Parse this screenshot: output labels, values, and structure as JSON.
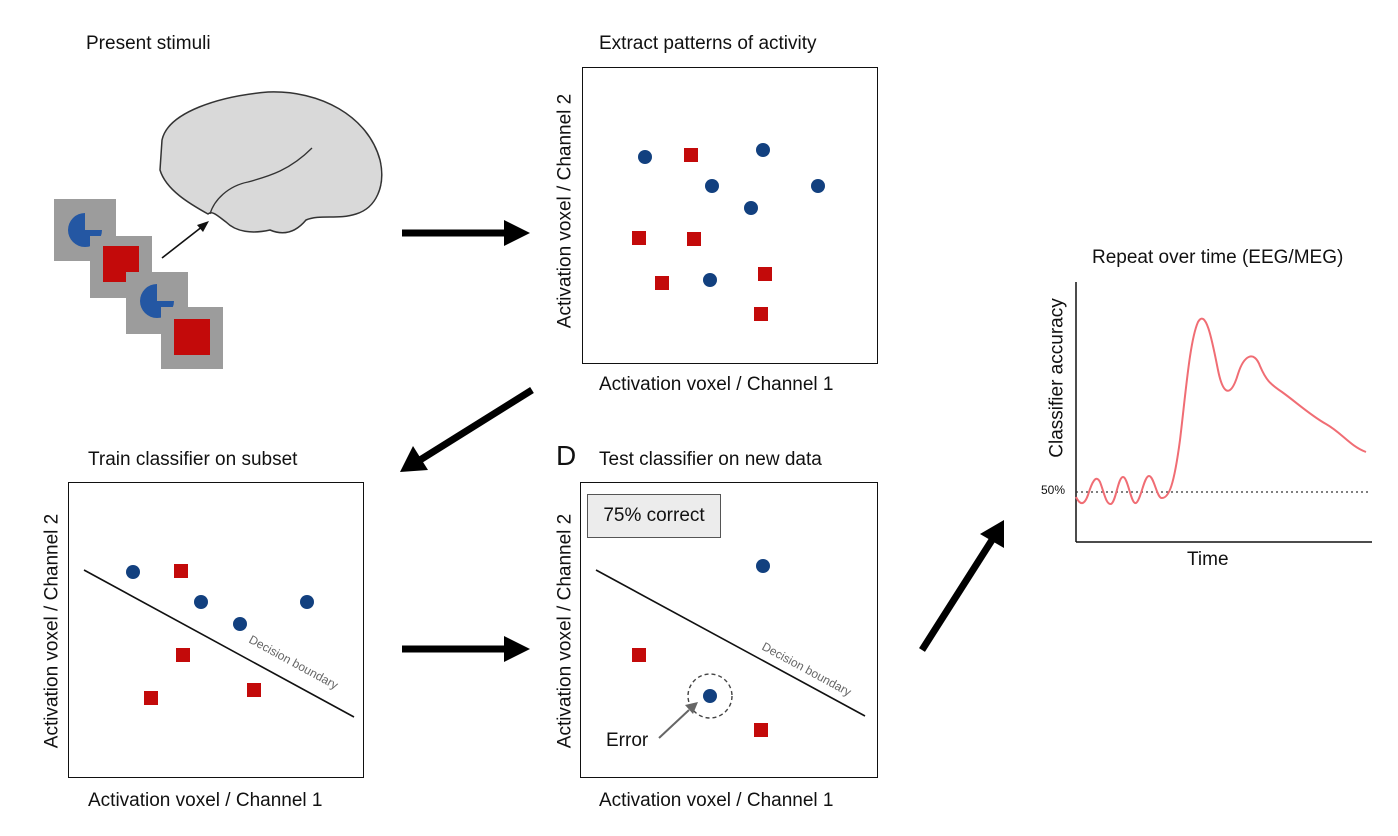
{
  "titles": {
    "present": "Present stimuli",
    "extract": "Extract patterns of activity",
    "train": "Train classifier on subset",
    "test_letter": "D",
    "test": "Test classifier on new data",
    "repeat": "Repeat over time (EEG/MEG)"
  },
  "axes": {
    "x": "Activation voxel / Channel 1",
    "y": "Activation voxel / Channel 2"
  },
  "labels": {
    "decision_boundary": "Decision boundary",
    "error": "Error",
    "correct": "75% correct"
  },
  "timecourse": {
    "ylabel": "Classifier accuracy",
    "xlabel": "Time",
    "chance": "50%"
  },
  "colors": {
    "circle": "#12407f",
    "square": "#c30a0a",
    "line": "#f06d74",
    "brain": "#d9d9d9"
  }
}
